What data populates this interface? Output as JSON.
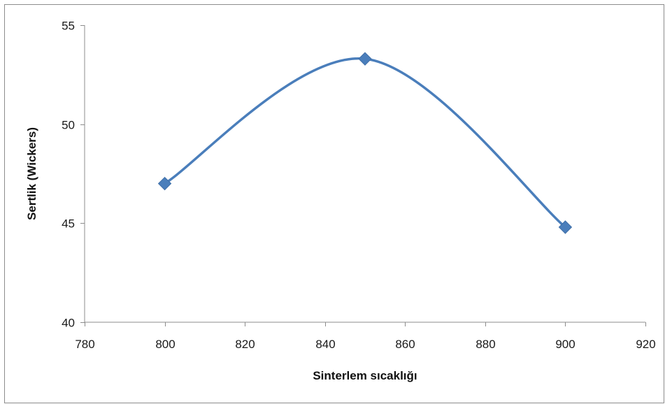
{
  "chart_data": {
    "type": "scatter",
    "title": "",
    "xlabel": "Sinterlem sıcaklığı",
    "ylabel": "Sertlik (Wickers)",
    "xlim": [
      780,
      920
    ],
    "ylim": [
      40,
      55
    ],
    "xticks": [
      780,
      800,
      820,
      840,
      860,
      880,
      900,
      920
    ],
    "yticks": [
      40,
      45,
      50,
      55
    ],
    "grid": false,
    "legend": "none",
    "smooth_line": true,
    "marker": "diamond",
    "series": [
      {
        "x": [
          800,
          850,
          900
        ],
        "y": [
          47.0,
          53.3,
          44.8
        ],
        "color": "#4a7ebb"
      }
    ]
  }
}
